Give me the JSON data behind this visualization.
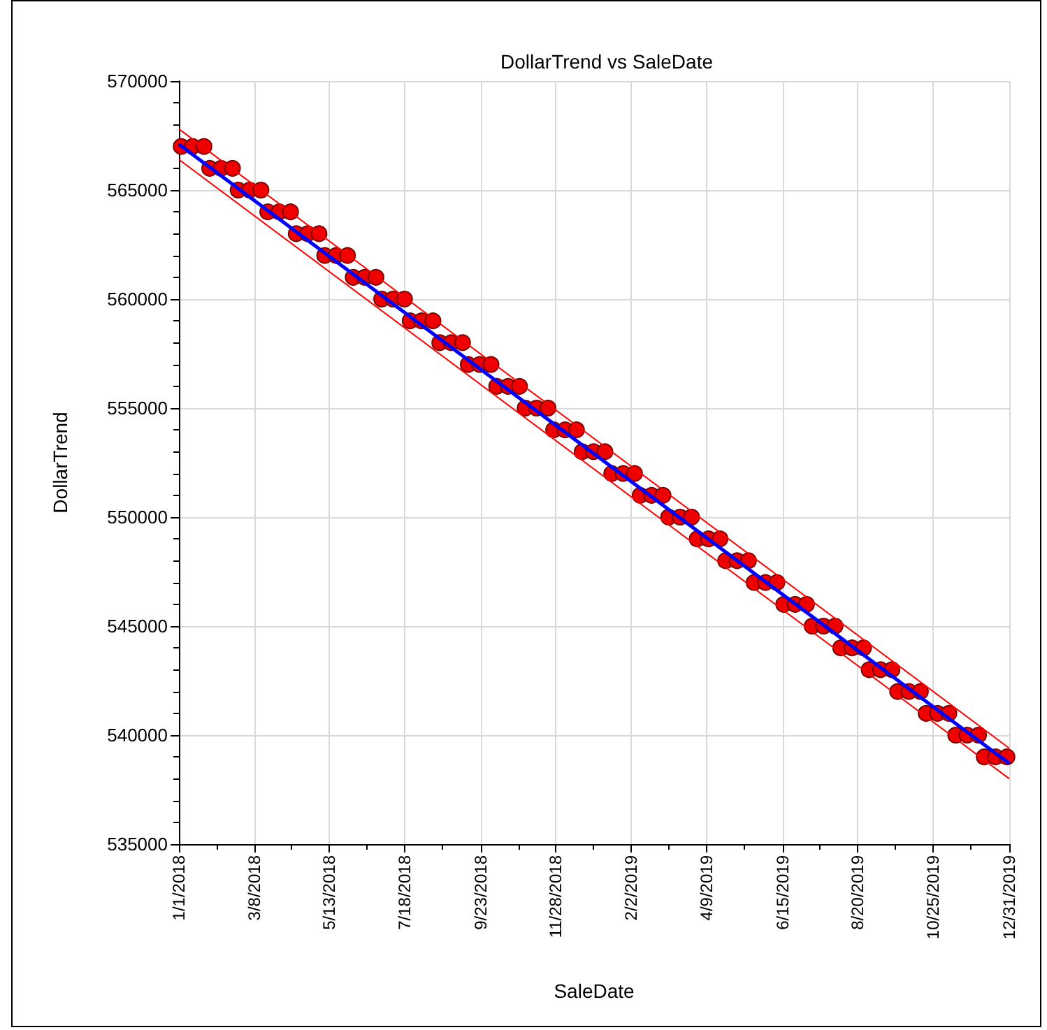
{
  "chart_data": {
    "type": "scatter",
    "title": "DollarTrend vs SaleDate",
    "xlabel": "SaleDate",
    "ylabel": "DollarTrend",
    "xlim": [
      "2018-01-01",
      "2019-12-31"
    ],
    "xticks": [
      {
        "value": "2018-01-01",
        "label": "1/1/2018"
      },
      {
        "value": "2018-02-03",
        "label": null
      },
      {
        "value": "2018-03-08",
        "label": "3/8/2018"
      },
      {
        "value": "2018-04-10",
        "label": null
      },
      {
        "value": "2018-05-13",
        "label": "5/13/2018"
      },
      {
        "value": "2018-06-15",
        "label": null
      },
      {
        "value": "2018-07-18",
        "label": "7/18/2018"
      },
      {
        "value": "2018-08-20",
        "label": null
      },
      {
        "value": "2018-09-23",
        "label": "9/23/2018"
      },
      {
        "value": "2018-10-26",
        "label": null
      },
      {
        "value": "2018-11-28",
        "label": "11/28/2018"
      },
      {
        "value": "2018-12-31",
        "label": null
      },
      {
        "value": "2019-02-02",
        "label": "2/2/2019"
      },
      {
        "value": "2019-03-07",
        "label": null
      },
      {
        "value": "2019-04-09",
        "label": "4/9/2019"
      },
      {
        "value": "2019-05-12",
        "label": null
      },
      {
        "value": "2019-06-15",
        "label": "6/15/2019"
      },
      {
        "value": "2019-07-18",
        "label": null
      },
      {
        "value": "2019-08-20",
        "label": "8/20/2019"
      },
      {
        "value": "2019-09-22",
        "label": null
      },
      {
        "value": "2019-10-25",
        "label": "10/25/2019"
      },
      {
        "value": "2019-11-27",
        "label": null
      },
      {
        "value": "2019-12-31",
        "label": "12/31/2019"
      }
    ],
    "ylim": [
      535000,
      570000
    ],
    "yticks": [
      535000,
      {
        "value": 536000,
        "label": null
      },
      {
        "value": 537000,
        "label": null
      },
      {
        "value": 538000,
        "label": null
      },
      {
        "value": 539000,
        "label": null
      },
      540000,
      {
        "value": 541000,
        "label": null
      },
      {
        "value": 542000,
        "label": null
      },
      {
        "value": 543000,
        "label": null
      },
      {
        "value": 544000,
        "label": null
      },
      545000,
      {
        "value": 546000,
        "label": null
      },
      {
        "value": 547000,
        "label": null
      },
      {
        "value": 548000,
        "label": null
      },
      {
        "value": 549000,
        "label": null
      },
      550000,
      {
        "value": 551000,
        "label": null
      },
      {
        "value": 552000,
        "label": null
      },
      {
        "value": 553000,
        "label": null
      },
      {
        "value": 554000,
        "label": null
      },
      555000,
      {
        "value": 556000,
        "label": null
      },
      {
        "value": 557000,
        "label": null
      },
      {
        "value": 558000,
        "label": null
      },
      {
        "value": 559000,
        "label": null
      },
      560000,
      {
        "value": 561000,
        "label": null
      },
      {
        "value": 562000,
        "label": null
      },
      {
        "value": 563000,
        "label": null
      },
      {
        "value": 564000,
        "label": null
      },
      565000,
      {
        "value": 566000,
        "label": null
      },
      {
        "value": 567000,
        "label": null
      },
      {
        "value": 568000,
        "label": null
      },
      {
        "value": 569000,
        "label": null
      },
      570000
    ],
    "grid": true,
    "line_style": "solid",
    "series": [
      {
        "marker": "circle",
        "color": "#ee0000",
        "x": [
          "2018-01-03",
          "2018-01-13",
          "2018-01-23",
          "2018-01-28",
          "2018-02-07",
          "2018-02-17",
          "2018-02-22",
          "2018-03-04",
          "2018-03-14",
          "2018-03-20",
          "2018-03-30",
          "2018-04-09",
          "2018-04-14",
          "2018-04-24",
          "2018-05-04",
          "2018-05-09",
          "2018-05-19",
          "2018-05-29",
          "2018-06-03",
          "2018-06-13",
          "2018-06-23",
          "2018-06-28",
          "2018-07-08",
          "2018-07-18",
          "2018-07-23",
          "2018-08-02",
          "2018-08-12",
          "2018-08-18",
          "2018-08-28",
          "2018-09-07",
          "2018-09-12",
          "2018-09-22",
          "2018-10-02",
          "2018-10-07",
          "2018-10-17",
          "2018-10-27",
          "2018-11-01",
          "2018-11-11",
          "2018-11-21",
          "2018-11-26",
          "2018-12-06",
          "2018-12-16",
          "2018-12-21",
          "2018-12-31",
          "2019-01-10",
          "2019-01-16",
          "2019-01-26",
          "2019-02-05",
          "2019-02-10",
          "2019-02-20",
          "2019-03-02",
          "2019-03-07",
          "2019-03-17",
          "2019-03-27",
          "2019-04-01",
          "2019-04-11",
          "2019-04-21",
          "2019-04-26",
          "2019-05-06",
          "2019-05-16",
          "2019-05-21",
          "2019-05-31",
          "2019-06-10",
          "2019-06-16",
          "2019-06-26",
          "2019-07-06",
          "2019-07-11",
          "2019-07-21",
          "2019-07-31",
          "2019-08-05",
          "2019-08-15",
          "2019-08-25",
          "2019-08-30",
          "2019-09-09",
          "2019-09-19",
          "2019-09-24",
          "2019-10-04",
          "2019-10-14",
          "2019-10-19",
          "2019-10-29",
          "2019-11-08",
          "2019-11-14",
          "2019-11-24",
          "2019-12-04",
          "2019-12-09",
          "2019-12-19",
          "2019-12-29"
        ],
        "values": [
          567000,
          567000,
          567000,
          566000,
          566000,
          566000,
          565000,
          565000,
          565000,
          564000,
          564000,
          564000,
          563000,
          563000,
          563000,
          562000,
          562000,
          562000,
          561000,
          561000,
          561000,
          560000,
          560000,
          560000,
          559000,
          559000,
          559000,
          558000,
          558000,
          558000,
          557000,
          557000,
          557000,
          556000,
          556000,
          556000,
          555000,
          555000,
          555000,
          554000,
          554000,
          554000,
          553000,
          553000,
          553000,
          552000,
          552000,
          552000,
          551000,
          551000,
          551000,
          550000,
          550000,
          550000,
          549000,
          549000,
          549000,
          548000,
          548000,
          548000,
          547000,
          547000,
          547000,
          546000,
          546000,
          546000,
          545000,
          545000,
          545000,
          544000,
          544000,
          544000,
          543000,
          543000,
          543000,
          542000,
          542000,
          542000,
          541000,
          541000,
          541000,
          540000,
          540000,
          540000,
          539000,
          539000,
          539000
        ]
      },
      {
        "type": "line",
        "marker": "none",
        "color": "#ff0000",
        "x": [
          "2018-01-01",
          "2019-12-31"
        ],
        "values": [
          567800,
          539400
        ]
      },
      {
        "type": "line",
        "marker": "none",
        "color": "#ff0000",
        "x": [
          "2018-01-01",
          "2019-12-31"
        ],
        "values": [
          566400,
          538000
        ]
      },
      {
        "type": "line",
        "marker": "none",
        "color": "#0000ff",
        "x": [
          "2018-01-01",
          "2019-12-31"
        ],
        "values": [
          567100,
          538700
        ]
      }
    ]
  }
}
